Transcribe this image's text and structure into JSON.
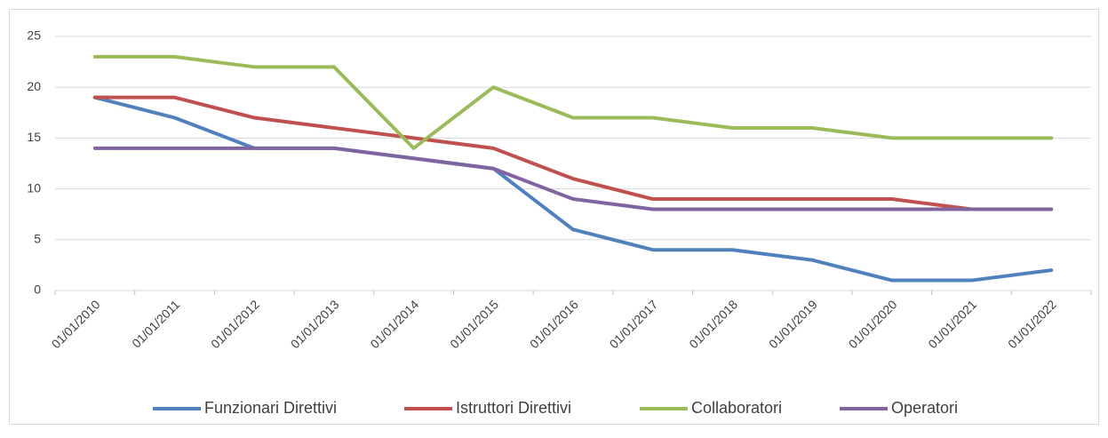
{
  "chart_data": {
    "type": "line",
    "categories": [
      "01/01/2010",
      "01/01/2011",
      "01/01/2012",
      "01/01/2013",
      "01/01/2014",
      "01/01/2015",
      "01/01/2016",
      "01/01/2017",
      "01/01/2018",
      "01/01/2019",
      "01/01/2020",
      "01/01/2021",
      "01/01/2022"
    ],
    "series": [
      {
        "name": "Funzionari Direttivi",
        "color": "#4f81bd",
        "values": [
          19,
          17,
          14,
          14,
          13,
          12,
          6,
          4,
          4,
          3,
          1,
          1,
          2
        ]
      },
      {
        "name": "Istruttori Direttivi",
        "color": "#c0504d",
        "values": [
          19,
          19,
          17,
          16,
          15,
          14,
          11,
          9,
          9,
          9,
          9,
          8,
          8
        ]
      },
      {
        "name": "Collaboratori",
        "color": "#9bbb59",
        "values": [
          23,
          23,
          22,
          22,
          14,
          20,
          17,
          17,
          16,
          16,
          15,
          15,
          15
        ]
      },
      {
        "name": "Operatori",
        "color": "#8064a2",
        "values": [
          14,
          14,
          14,
          14,
          13,
          12,
          9,
          8,
          8,
          8,
          8,
          8,
          8
        ]
      }
    ],
    "ylim": [
      0,
      25
    ],
    "yticks": [
      0,
      5,
      10,
      15,
      20,
      25
    ],
    "grid": true,
    "legend": "bottom"
  }
}
